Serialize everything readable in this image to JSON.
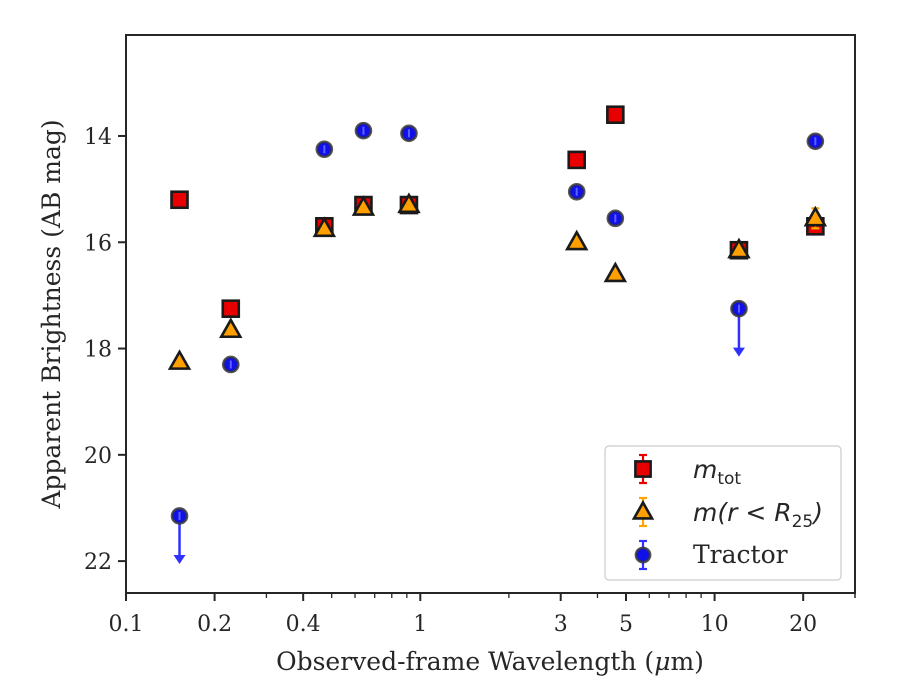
{
  "chart_data": {
    "type": "scatter",
    "xlabel_prefix": "Observed-frame Wavelength (",
    "xlabel_mu": "μ",
    "xlabel_suffix": "m)",
    "ylabel": "Apparent Brightness (AB mag)",
    "x_scale": "log",
    "xlim": [
      0.1,
      30
    ],
    "ylim": [
      22.6,
      12.1
    ],
    "y_inverted": true,
    "grid": false,
    "legend_placement": "lower-right",
    "x_ticks": [
      {
        "value": 0.1,
        "label": "0.1"
      },
      {
        "value": 0.2,
        "label": "0.2"
      },
      {
        "value": 0.4,
        "label": "0.4"
      },
      {
        "value": 1,
        "label": "1"
      },
      {
        "value": 3,
        "label": "3"
      },
      {
        "value": 5,
        "label": "5"
      },
      {
        "value": 10,
        "label": "10"
      },
      {
        "value": 20,
        "label": "20"
      }
    ],
    "y_ticks": [
      {
        "value": 14,
        "label": "14"
      },
      {
        "value": 16,
        "label": "16"
      },
      {
        "value": 18,
        "label": "18"
      },
      {
        "value": 20,
        "label": "20"
      },
      {
        "value": 22,
        "label": "22"
      }
    ],
    "series": [
      {
        "id": "m_tot",
        "legend_main": "m",
        "legend_sub": "tot",
        "marker": "square",
        "color": "#e80000",
        "errcolor": "#e80000",
        "x": [
          0.152,
          0.227,
          0.472,
          0.641,
          0.915,
          3.4,
          4.6,
          12.1,
          22.0
        ],
        "y": [
          15.2,
          17.25,
          15.7,
          15.3,
          15.3,
          14.45,
          13.6,
          16.15,
          15.7
        ]
      },
      {
        "id": "m_r25",
        "legend_main": "m(r < R",
        "legend_sub": "25",
        "legend_tail": ")",
        "marker": "triangle",
        "color": "#ff9f00",
        "errcolor": "#ffa500",
        "x": [
          0.152,
          0.227,
          0.472,
          0.641,
          0.915,
          3.4,
          4.6,
          12.1,
          22.0
        ],
        "y": [
          18.25,
          17.65,
          15.75,
          15.35,
          15.3,
          16.0,
          16.6,
          16.15,
          15.55
        ]
      },
      {
        "id": "tractor",
        "legend_main": "Tractor",
        "marker": "circle",
        "color": "#1010e8",
        "errcolor": "#3030ff",
        "x": [
          0.152,
          0.227,
          0.472,
          0.641,
          0.915,
          3.4,
          4.6,
          12.1,
          22.0
        ],
        "y": [
          21.15,
          18.3,
          14.25,
          13.9,
          13.95,
          15.05,
          15.55,
          17.25,
          14.1
        ],
        "upper_limits": [
          true,
          false,
          false,
          false,
          false,
          false,
          false,
          true,
          false
        ]
      }
    ]
  }
}
